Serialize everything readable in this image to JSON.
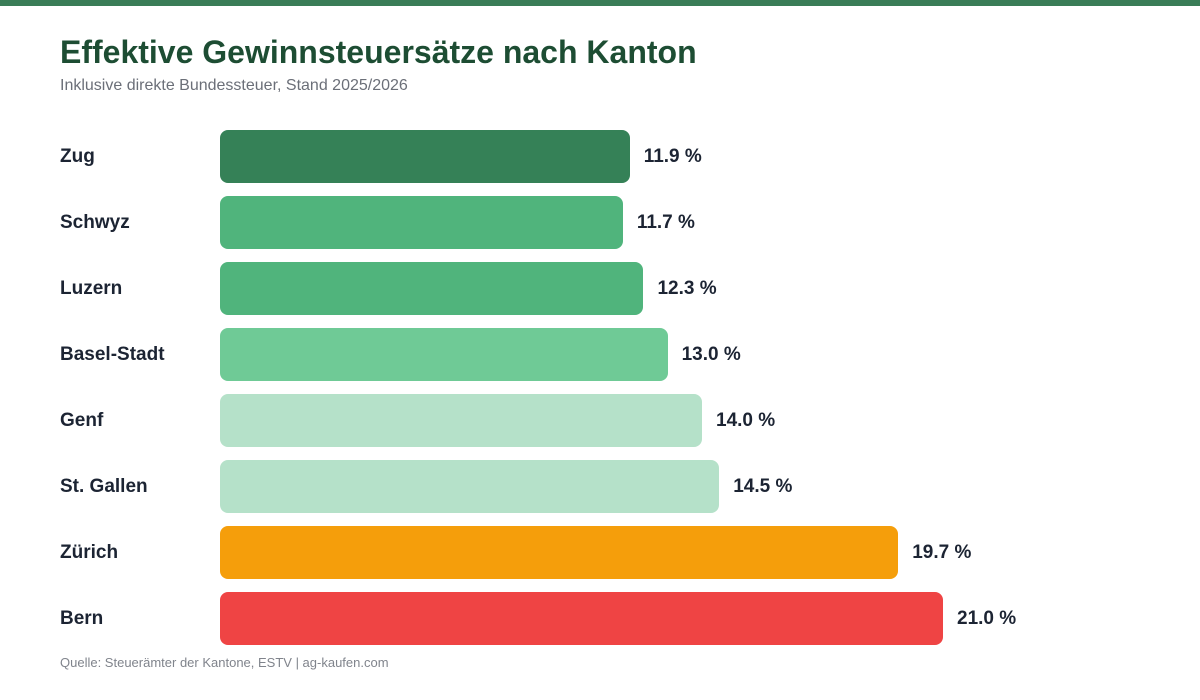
{
  "title": "Effektive Gewinnsteuersätze nach Kanton",
  "subtitle": "Inklusive direkte Bundessteuer, Stand 2025/2026",
  "source": "Quelle: Steuerämter der Kantone, ESTV | ag-kaufen.com",
  "accent_color": "#3a7d57",
  "chart_data": {
    "type": "bar",
    "orientation": "horizontal",
    "title": "Effektive Gewinnsteuersätze nach Kanton",
    "subtitle": "Inklusive direkte Bundessteuer, Stand 2025/2026",
    "categories": [
      "Zug",
      "Schwyz",
      "Luzern",
      "Basel-Stadt",
      "Genf",
      "St. Gallen",
      "Zürich",
      "Bern"
    ],
    "values": [
      11.9,
      11.7,
      12.3,
      13.0,
      14.0,
      14.5,
      19.7,
      21.0
    ],
    "value_labels": [
      "11.9 %",
      "11.7 %",
      "12.3 %",
      "13.0 %",
      "14.0 %",
      "14.5 %",
      "19.7 %",
      "21.0 %"
    ],
    "colors": [
      "#358157",
      "#50b47c",
      "#50b47c",
      "#6fca96",
      "#b5e1c9",
      "#b5e1c9",
      "#f59e0b",
      "#ef4444"
    ],
    "unit": "%",
    "xlim": [
      0,
      21.0
    ],
    "grid": false,
    "legend": "none"
  }
}
